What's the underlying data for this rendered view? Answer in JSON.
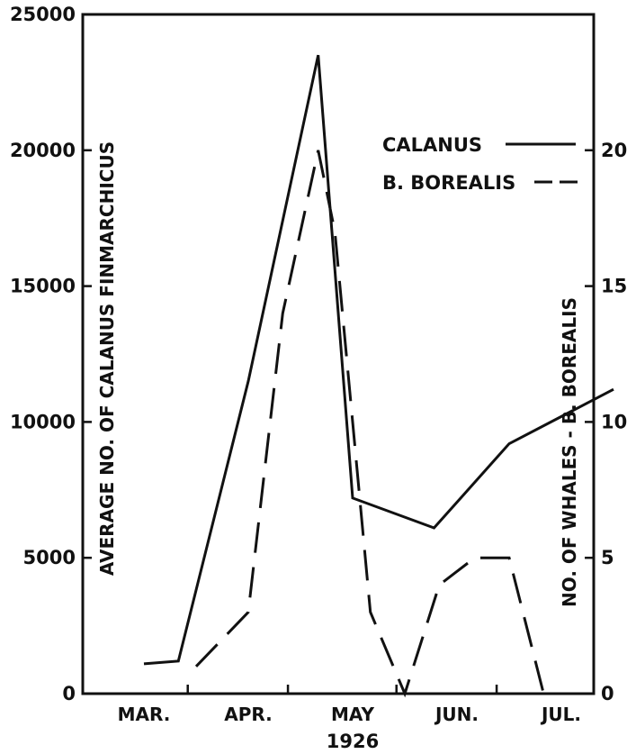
{
  "chart_data": {
    "type": "line",
    "title": "",
    "xlabel": "1926",
    "ylabel_left": "AVERAGE NO. OF CALANUS FINMARCHICUS",
    "ylabel_right": "NO. OF WHALES - B. BOREALIS",
    "x_ticks": [
      "MAR.",
      "APR.",
      "MAY",
      "JUN.",
      "JUL."
    ],
    "y_left_ticks": [
      "0",
      "5000",
      "10000",
      "15000",
      "20000",
      "25000"
    ],
    "y_right_ticks": [
      "0",
      "5",
      "10",
      "15",
      "20"
    ],
    "ylim_left": [
      0,
      25000
    ],
    "ylim_right": [
      0,
      25
    ],
    "xlim": [
      0,
      4.5
    ],
    "legend_placement": "top-right",
    "series": [
      {
        "name": "CALANUS",
        "axis": "left",
        "style": "solid",
        "x": [
          0,
          0.33,
          1.0,
          1.67,
          2.0,
          2.78,
          3.5,
          4.5
        ],
        "values": [
          1100,
          1200,
          11500,
          23500,
          7200,
          6100,
          9200,
          11200
        ]
      },
      {
        "name": "B. BOREALIS",
        "axis": "right",
        "style": "dashed",
        "x": [
          0.5,
          1.0,
          1.33,
          1.67,
          1.83,
          2.17,
          2.5,
          2.83,
          3.17,
          3.5,
          3.83,
          4.17
        ],
        "values": [
          1,
          3,
          14,
          20,
          17,
          3,
          0,
          4,
          5,
          5,
          0,
          0
        ]
      }
    ]
  }
}
